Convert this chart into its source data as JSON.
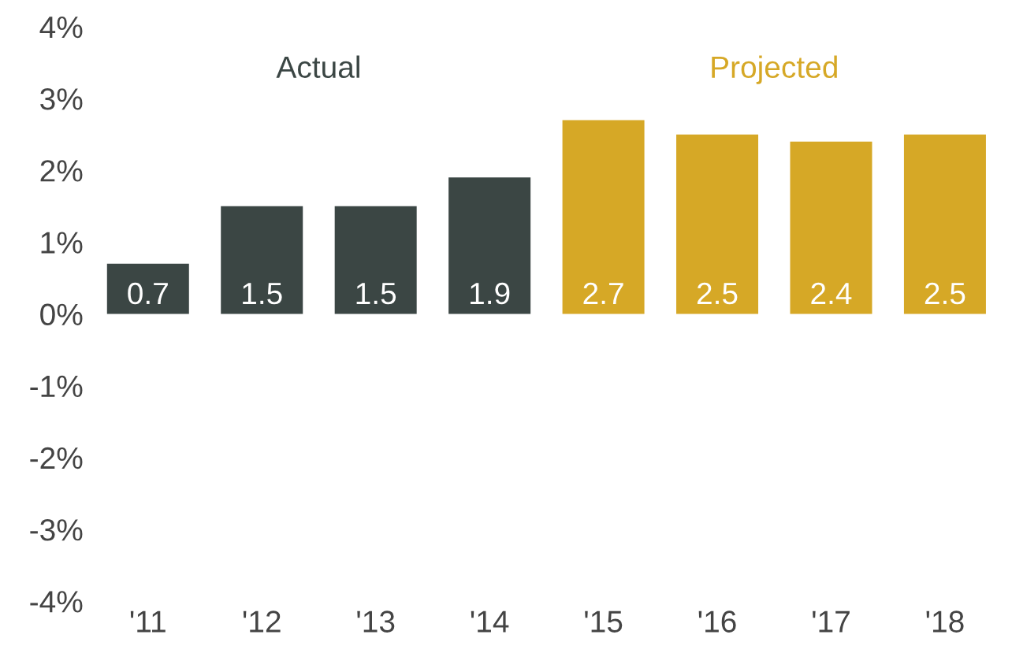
{
  "chart_data": {
    "type": "bar",
    "categories": [
      "'11",
      "'12",
      "'13",
      "'14",
      "'15",
      "'16",
      "'17",
      "'18"
    ],
    "values": [
      0.7,
      1.5,
      1.5,
      1.9,
      2.7,
      2.5,
      2.4,
      2.5
    ],
    "colors": [
      "#3b4644",
      "#3b4644",
      "#3b4644",
      "#3b4644",
      "#d6a826",
      "#d6a826",
      "#d6a826",
      "#d6a826"
    ],
    "annotations": [
      "Actual",
      "Projected"
    ],
    "data_labels": true,
    "grid": false,
    "legend": false,
    "ylim": [
      -4,
      4
    ],
    "yticks": [
      {
        "value": -4,
        "label": "-4%"
      },
      {
        "value": -3,
        "label": "-3%"
      },
      {
        "value": -2,
        "label": "-2%"
      },
      {
        "value": -1,
        "label": "-1%"
      },
      {
        "value": 0,
        "label": "0%"
      },
      {
        "value": 1,
        "label": "1%"
      },
      {
        "value": 2,
        "label": "2%"
      },
      {
        "value": 3,
        "label": "3%"
      },
      {
        "value": 4,
        "label": "4%"
      }
    ]
  }
}
